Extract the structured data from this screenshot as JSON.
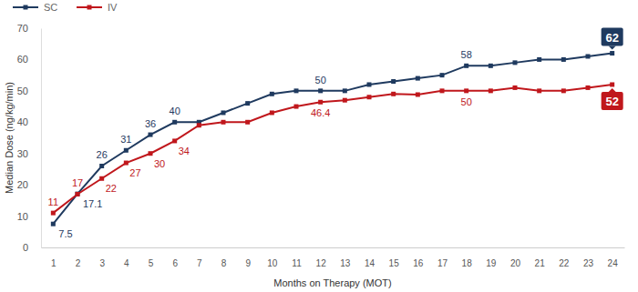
{
  "chart_data": {
    "type": "line",
    "xlabel": "Months on Therapy (MOT)",
    "ylabel": "Median Dose (ng/kg/min)",
    "x": [
      1,
      2,
      3,
      4,
      5,
      6,
      7,
      8,
      9,
      10,
      11,
      12,
      13,
      14,
      15,
      16,
      17,
      18,
      19,
      20,
      21,
      22,
      23,
      24
    ],
    "xlim": [
      0.5,
      24.5
    ],
    "xticks": [
      1,
      2,
      3,
      4,
      5,
      6,
      7,
      8,
      9,
      10,
      11,
      12,
      13,
      14,
      15,
      16,
      17,
      18,
      19,
      20,
      21,
      22,
      23,
      24
    ],
    "ylim": [
      0,
      70
    ],
    "yticks": [
      0,
      10,
      20,
      30,
      40,
      50,
      60,
      70
    ],
    "grid": false,
    "legend": "top-left",
    "data_labels": true,
    "marker": "square",
    "series": [
      {
        "name": "SC",
        "color": "#1f3a5f",
        "values": [
          7.5,
          17.1,
          26,
          31,
          36,
          40,
          40,
          43,
          46,
          49,
          50,
          50,
          50,
          52,
          53,
          54,
          55,
          58,
          58,
          59,
          60,
          60,
          61,
          62
        ],
        "value_labels": [
          "7.5",
          "17.1",
          "26",
          "31",
          "36",
          "40",
          null,
          null,
          null,
          null,
          null,
          "50",
          null,
          null,
          null,
          null,
          null,
          "58",
          null,
          null,
          null,
          null,
          null,
          "62"
        ]
      },
      {
        "name": "IV",
        "color": "#c0171c",
        "values": [
          11,
          17,
          22,
          27,
          30,
          34,
          39,
          40,
          40,
          43,
          45,
          46.4,
          47,
          48,
          49,
          48.8,
          50,
          50,
          50,
          51,
          50,
          50,
          51,
          52
        ],
        "value_labels": [
          "11",
          "17",
          "22",
          "27",
          "30",
          "34",
          null,
          null,
          null,
          null,
          null,
          "46.4",
          null,
          null,
          null,
          null,
          null,
          "50",
          null,
          null,
          null,
          null,
          null,
          "52"
        ]
      }
    ]
  }
}
